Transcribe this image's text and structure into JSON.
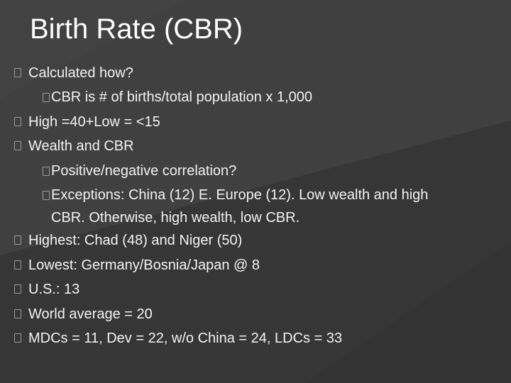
{
  "slide": {
    "title": "Birth Rate (CBR)",
    "items": [
      {
        "level": 1,
        "text": "Calculated how?"
      },
      {
        "level": 2,
        "lead": "CBR",
        "text": " is # of births/total population x 1,000"
      },
      {
        "level": 1,
        "text": "High =40+Low = <15"
      },
      {
        "level": 1,
        "text": "Wealth and CBR"
      },
      {
        "level": 2,
        "text": "Positive/negative correlation?"
      },
      {
        "level": 2,
        "text": "Exceptions: China (12) E. Europe (12). Low wealth and high",
        "cont": "CBR. Otherwise, high wealth, low CBR."
      },
      {
        "level": 1,
        "text": "Highest: Chad (48) and Niger (50)"
      },
      {
        "level": 1,
        "text": "Lowest: Germany/Bosnia/Japan @ 8"
      },
      {
        "level": 1,
        "text": "U.S.: 13"
      },
      {
        "level": 1,
        "text": "World average = 20"
      },
      {
        "level": 1,
        "text": "MDCs = 11, Dev = 22, w/o China = 24, LDCs = 33"
      }
    ]
  },
  "colors": {
    "background": "#3b3b3b",
    "text": "#f2f2f2",
    "bullet_border": "#9a9a9a"
  },
  "icons": {
    "bullet": "box-bullet-icon"
  }
}
